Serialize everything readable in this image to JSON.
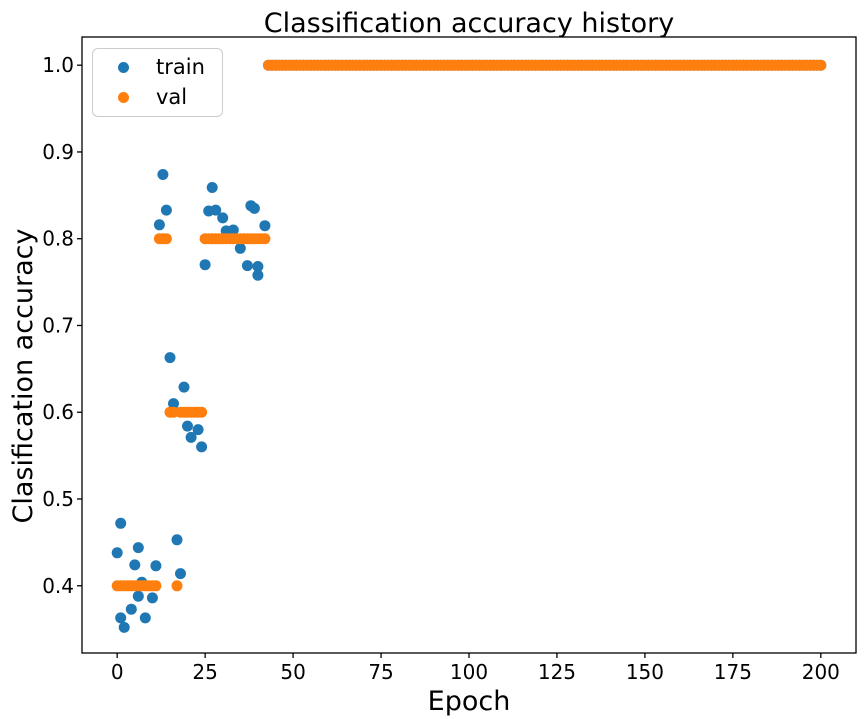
{
  "chart_data": {
    "type": "scatter",
    "title": "Classification accuracy history",
    "xlabel": "Epoch",
    "ylabel": "Clasification accuracy",
    "xlim": [
      -10,
      210
    ],
    "ylim": [
      0.3225,
      1.0325
    ],
    "x_ticks": [
      0,
      25,
      50,
      75,
      100,
      125,
      150,
      175,
      200
    ],
    "y_ticks": [
      0.4,
      0.5,
      0.6,
      0.7,
      0.8,
      0.9,
      1.0
    ],
    "grid": false,
    "legend_position": "upper left",
    "marker": "circle",
    "colors": {
      "train": "#1f77b4",
      "val": "#ff7f0e"
    },
    "series": [
      {
        "name": "train",
        "color": "#1f77b4",
        "points": [
          [
            0,
            0.438
          ],
          [
            1,
            0.472
          ],
          [
            1,
            0.363
          ],
          [
            2,
            0.352
          ],
          [
            4,
            0.373
          ],
          [
            5,
            0.424
          ],
          [
            6,
            0.444
          ],
          [
            6,
            0.388
          ],
          [
            7,
            0.404
          ],
          [
            8,
            0.363
          ],
          [
            10,
            0.386
          ],
          [
            11,
            0.423
          ],
          [
            17,
            0.453
          ],
          [
            18,
            0.414
          ],
          [
            15,
            0.663
          ],
          [
            16,
            0.61
          ],
          [
            19,
            0.629
          ],
          [
            20,
            0.584
          ],
          [
            21,
            0.571
          ],
          [
            23,
            0.58
          ],
          [
            24,
            0.56
          ],
          [
            12,
            0.816
          ],
          [
            13,
            0.874
          ],
          [
            14,
            0.833
          ],
          [
            25,
            0.77
          ],
          [
            26,
            0.832
          ],
          [
            27,
            0.859
          ],
          [
            28,
            0.833
          ],
          [
            30,
            0.824
          ],
          [
            31,
            0.809
          ],
          [
            33,
            0.81
          ],
          [
            35,
            0.789
          ],
          [
            37,
            0.769
          ],
          [
            38,
            0.838
          ],
          [
            39,
            0.835
          ],
          [
            40,
            0.768
          ],
          [
            40,
            0.758
          ],
          [
            42,
            0.815
          ]
        ],
        "runs": [
          {
            "from": 43,
            "to": 200,
            "value": 1.0
          }
        ]
      },
      {
        "name": "val",
        "color": "#ff7f0e",
        "points": [
          [
            17,
            0.4
          ]
        ],
        "runs": [
          {
            "from": 0,
            "to": 11,
            "value": 0.4
          },
          {
            "from": 12,
            "to": 14,
            "value": 0.8
          },
          {
            "from": 15,
            "to": 16,
            "value": 0.6
          },
          {
            "from": 18,
            "to": 24,
            "value": 0.6
          },
          {
            "from": 25,
            "to": 42,
            "value": 0.8
          },
          {
            "from": 43,
            "to": 200,
            "value": 1.0
          }
        ]
      }
    ]
  }
}
